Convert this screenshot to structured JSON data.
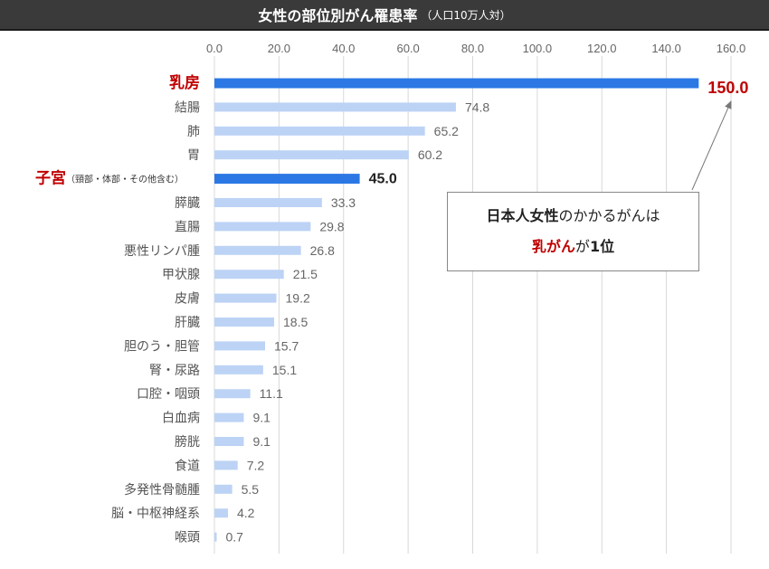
{
  "title": {
    "main": "女性の部位別がん罹患率",
    "sub": "（人口10万人対）"
  },
  "callout": {
    "line1_bold": "日本人女性",
    "line1_rest": "のかかるがんは",
    "line2_red": "乳がん",
    "line2_mid": "が",
    "line2_bold": "1位"
  },
  "colors": {
    "highlight_bar": "#2b78e4",
    "normal_bar": "#bcd3f5",
    "highlight_label": "#c00000",
    "grid": "#d8d8d8",
    "title_bg": "#3a3a3a"
  },
  "chart_data": {
    "type": "bar",
    "orientation": "horizontal",
    "title": "女性の部位別がん罹患率（人口10万人対）",
    "xlim": [
      0,
      160
    ],
    "x_ticks": [
      "0.0",
      "20.0",
      "40.0",
      "60.0",
      "80.0",
      "100.0",
      "120.0",
      "140.0",
      "160.0"
    ],
    "grid": true,
    "categories": [
      {
        "label": "乳房",
        "sub": "",
        "value": 150.0,
        "display": "150.0",
        "highlight": true
      },
      {
        "label": "結腸",
        "sub": "",
        "value": 74.8,
        "display": "74.8",
        "highlight": false
      },
      {
        "label": "肺",
        "sub": "",
        "value": 65.2,
        "display": "65.2",
        "highlight": false
      },
      {
        "label": "胃",
        "sub": "",
        "value": 60.2,
        "display": "60.2",
        "highlight": false
      },
      {
        "label": "子宮",
        "sub": "（頸部・体部・その他含む）",
        "value": 45.0,
        "display": "45.0",
        "highlight": true
      },
      {
        "label": "膵臓",
        "sub": "",
        "value": 33.3,
        "display": "33.3",
        "highlight": false
      },
      {
        "label": "直腸",
        "sub": "",
        "value": 29.8,
        "display": "29.8",
        "highlight": false
      },
      {
        "label": "悪性リンパ腫",
        "sub": "",
        "value": 26.8,
        "display": "26.8",
        "highlight": false
      },
      {
        "label": "甲状腺",
        "sub": "",
        "value": 21.5,
        "display": "21.5",
        "highlight": false
      },
      {
        "label": "皮膚",
        "sub": "",
        "value": 19.2,
        "display": "19.2",
        "highlight": false
      },
      {
        "label": "肝臓",
        "sub": "",
        "value": 18.5,
        "display": "18.5",
        "highlight": false
      },
      {
        "label": "胆のう・胆管",
        "sub": "",
        "value": 15.7,
        "display": "15.7",
        "highlight": false
      },
      {
        "label": "腎・尿路",
        "sub": "",
        "value": 15.1,
        "display": "15.1",
        "highlight": false
      },
      {
        "label": "口腔・咽頭",
        "sub": "",
        "value": 11.1,
        "display": "11.1",
        "highlight": false
      },
      {
        "label": "白血病",
        "sub": "",
        "value": 9.1,
        "display": "9.1",
        "highlight": false
      },
      {
        "label": "膀胱",
        "sub": "",
        "value": 9.1,
        "display": "9.1",
        "highlight": false
      },
      {
        "label": "食道",
        "sub": "",
        "value": 7.2,
        "display": "7.2",
        "highlight": false
      },
      {
        "label": "多発性骨髄腫",
        "sub": "",
        "value": 5.5,
        "display": "5.5",
        "highlight": false
      },
      {
        "label": "脳・中枢神経系",
        "sub": "",
        "value": 4.2,
        "display": "4.2",
        "highlight": false
      },
      {
        "label": "喉頭",
        "sub": "",
        "value": 0.7,
        "display": "0.7",
        "highlight": false
      }
    ]
  }
}
